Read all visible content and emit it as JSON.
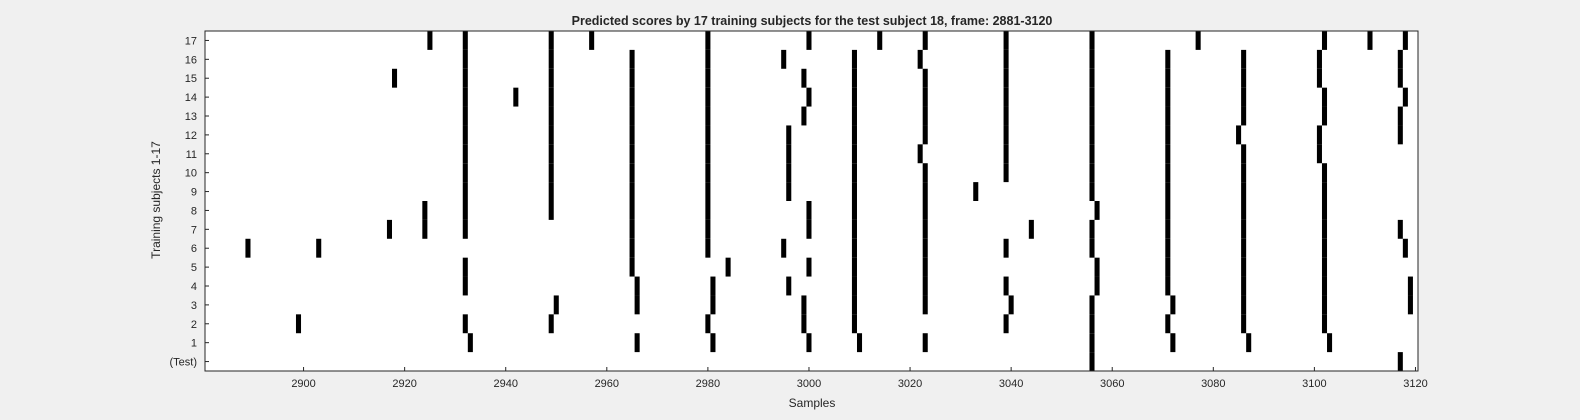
{
  "chart_data": {
    "type": "heatmap",
    "title": "Predicted scores by 17 training subjects for the test subject 18, frame: 2881-3120",
    "xlabel": "Samples",
    "ylabel": "Training subjects 1-17",
    "xlim": [
      2881,
      3120
    ],
    "xticks": [
      2900,
      2920,
      2940,
      2960,
      2980,
      3000,
      3020,
      3040,
      3060,
      3080,
      3100,
      3120
    ],
    "rows": [
      "(Test)",
      "1",
      "2",
      "3",
      "4",
      "5",
      "6",
      "7",
      "8",
      "9",
      "10",
      "11",
      "12",
      "13",
      "14",
      "15",
      "16",
      "17"
    ],
    "background": "#ffffff",
    "mark_color": "#000000",
    "grid": false,
    "marks": [
      {
        "row": "(Test)",
        "x": [
          3056,
          3117
        ]
      },
      {
        "row": "1",
        "x": [
          2933,
          2966,
          2981,
          3000,
          3010,
          3023,
          3056,
          3072,
          3087,
          3103
        ]
      },
      {
        "row": "2",
        "x": [
          2899,
          2932,
          2949,
          2980,
          2999,
          3009,
          3039,
          3056,
          3071,
          3086,
          3102
        ]
      },
      {
        "row": "3",
        "x": [
          2950,
          2966,
          2981,
          2999,
          3009,
          3023,
          3040,
          3056,
          3072,
          3086,
          3102,
          3119
        ]
      },
      {
        "row": "4",
        "x": [
          2932,
          2966,
          2981,
          2996,
          3009,
          3023,
          3039,
          3057,
          3071,
          3086,
          3102,
          3119
        ]
      },
      {
        "row": "5",
        "x": [
          2932,
          2965,
          2984,
          3000,
          3009,
          3023,
          3057,
          3071,
          3086,
          3102
        ]
      },
      {
        "row": "6",
        "x": [
          2889,
          2903,
          2965,
          2980,
          2995,
          3009,
          3023,
          3039,
          3056,
          3071,
          3086,
          3102,
          3118
        ]
      },
      {
        "row": "7",
        "x": [
          2917,
          2924,
          2932,
          2965,
          2980,
          3000,
          3009,
          3023,
          3044,
          3056,
          3071,
          3086,
          3102,
          3117
        ]
      },
      {
        "row": "8",
        "x": [
          2924,
          2932,
          2949,
          2965,
          2980,
          3000,
          3009,
          3023,
          3057,
          3071,
          3086,
          3102
        ]
      },
      {
        "row": "9",
        "x": [
          2932,
          2949,
          2965,
          2980,
          2996,
          3009,
          3023,
          3033,
          3056,
          3071,
          3086,
          3102
        ]
      },
      {
        "row": "10",
        "x": [
          2932,
          2949,
          2965,
          2980,
          2996,
          3009,
          3023,
          3039,
          3056,
          3071,
          3086,
          3102
        ]
      },
      {
        "row": "11",
        "x": [
          2932,
          2949,
          2965,
          2980,
          2996,
          3009,
          3022,
          3039,
          3056,
          3071,
          3086,
          3101
        ]
      },
      {
        "row": "12",
        "x": [
          2932,
          2949,
          2965,
          2980,
          2996,
          3009,
          3023,
          3039,
          3056,
          3071,
          3085,
          3101,
          3117
        ]
      },
      {
        "row": "13",
        "x": [
          2932,
          2949,
          2965,
          2980,
          2999,
          3009,
          3023,
          3039,
          3056,
          3071,
          3086,
          3102,
          3117
        ]
      },
      {
        "row": "14",
        "x": [
          2942,
          2932,
          2949,
          2965,
          2980,
          3000,
          3009,
          3023,
          3039,
          3056,
          3071,
          3086,
          3102,
          3118
        ]
      },
      {
        "row": "15",
        "x": [
          2918,
          2932,
          2949,
          2965,
          2980,
          2999,
          3009,
          3023,
          3039,
          3056,
          3071,
          3086,
          3101,
          3117
        ]
      },
      {
        "row": "16",
        "x": [
          2932,
          2949,
          2965,
          2980,
          2995,
          3009,
          3022,
          3039,
          3056,
          3071,
          3086,
          3101,
          3117
        ]
      },
      {
        "row": "17",
        "x": [
          2925,
          2932,
          2949,
          2957,
          2980,
          3000,
          3014,
          3023,
          3039,
          3056,
          3077,
          3102,
          3111,
          3118
        ]
      }
    ]
  }
}
